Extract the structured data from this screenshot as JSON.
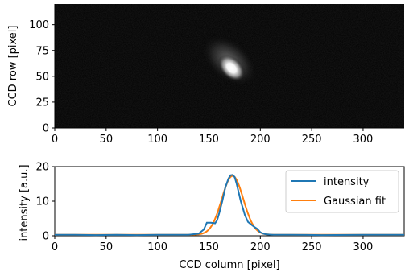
{
  "chart_data": [
    {
      "type": "heatmap",
      "xlabel": "",
      "ylabel": "CCD row [pixel]",
      "xlim": [
        0,
        340
      ],
      "ylim": [
        0,
        120
      ],
      "xticks": [
        0,
        50,
        100,
        150,
        200,
        250,
        300
      ],
      "yticks": [
        0,
        25,
        50,
        75,
        100
      ],
      "colormap": "gray",
      "spot": {
        "center_x": 172,
        "center_y": 58,
        "tilt": "along the diagonal",
        "halo_center_x": 170,
        "halo_center_y": 65
      }
    },
    {
      "type": "line",
      "xlabel": "CCD column [pixel]",
      "ylabel": "intensity [a.u.]",
      "xlim": [
        0,
        340
      ],
      "ylim": [
        0,
        20
      ],
      "xticks": [
        0,
        50,
        100,
        150,
        200,
        250,
        300
      ],
      "yticks": [
        0,
        10,
        20
      ],
      "legend_position": "top-right",
      "series": [
        {
          "name": "intensity",
          "color": "#1f77b4",
          "x": [
            0,
            20,
            40,
            60,
            80,
            100,
            120,
            130,
            140,
            145,
            148,
            152,
            156,
            158,
            160,
            163,
            166,
            169,
            171,
            173,
            175,
            177,
            179,
            181,
            183,
            185,
            188,
            191,
            194,
            197,
            200,
            203,
            206,
            212,
            230,
            260,
            300,
            340
          ],
          "y": [
            0.3,
            0.3,
            0.2,
            0.3,
            0.2,
            0.3,
            0.3,
            0.3,
            0.6,
            1.8,
            3.8,
            3.8,
            3.6,
            4.5,
            6.5,
            10.0,
            14.0,
            16.5,
            17.5,
            17.6,
            17.0,
            15.0,
            12.5,
            10.0,
            8.0,
            6.0,
            4.0,
            3.3,
            2.6,
            2.0,
            1.0,
            0.6,
            0.4,
            0.3,
            0.3,
            0.2,
            0.3,
            0.3
          ]
        },
        {
          "name": "Gaussian fit",
          "color": "#ff7f0e",
          "mean": 173,
          "sigma": 10.5,
          "amplitude": 17.0,
          "offset": 0.3
        }
      ]
    }
  ]
}
